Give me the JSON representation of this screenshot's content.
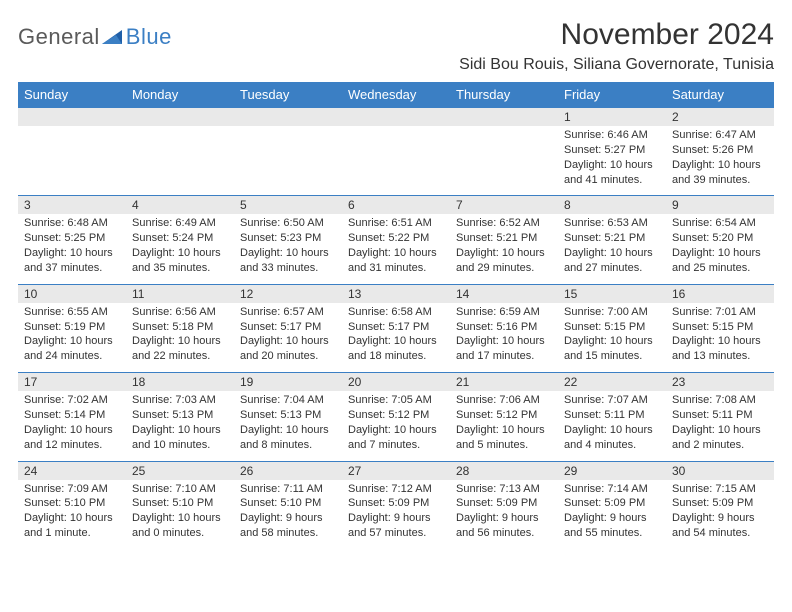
{
  "logo": {
    "text1": "General",
    "text2": "Blue"
  },
  "title": "November 2024",
  "location": "Sidi Bou Rouis, Siliana Governorate, Tunisia",
  "colors": {
    "header_bg": "#3b7fc4",
    "header_text": "#ffffff",
    "daynum_bg": "#e9e9e9",
    "border": "#3b7fc4",
    "text": "#333333",
    "logo_gray": "#5a5a5a",
    "logo_blue": "#3b7fc4"
  },
  "day_headers": [
    "Sunday",
    "Monday",
    "Tuesday",
    "Wednesday",
    "Thursday",
    "Friday",
    "Saturday"
  ],
  "weeks": [
    [
      null,
      null,
      null,
      null,
      null,
      {
        "n": "1",
        "sr": "6:46 AM",
        "ss": "5:27 PM",
        "dl": "10 hours and 41 minutes."
      },
      {
        "n": "2",
        "sr": "6:47 AM",
        "ss": "5:26 PM",
        "dl": "10 hours and 39 minutes."
      }
    ],
    [
      {
        "n": "3",
        "sr": "6:48 AM",
        "ss": "5:25 PM",
        "dl": "10 hours and 37 minutes."
      },
      {
        "n": "4",
        "sr": "6:49 AM",
        "ss": "5:24 PM",
        "dl": "10 hours and 35 minutes."
      },
      {
        "n": "5",
        "sr": "6:50 AM",
        "ss": "5:23 PM",
        "dl": "10 hours and 33 minutes."
      },
      {
        "n": "6",
        "sr": "6:51 AM",
        "ss": "5:22 PM",
        "dl": "10 hours and 31 minutes."
      },
      {
        "n": "7",
        "sr": "6:52 AM",
        "ss": "5:21 PM",
        "dl": "10 hours and 29 minutes."
      },
      {
        "n": "8",
        "sr": "6:53 AM",
        "ss": "5:21 PM",
        "dl": "10 hours and 27 minutes."
      },
      {
        "n": "9",
        "sr": "6:54 AM",
        "ss": "5:20 PM",
        "dl": "10 hours and 25 minutes."
      }
    ],
    [
      {
        "n": "10",
        "sr": "6:55 AM",
        "ss": "5:19 PM",
        "dl": "10 hours and 24 minutes."
      },
      {
        "n": "11",
        "sr": "6:56 AM",
        "ss": "5:18 PM",
        "dl": "10 hours and 22 minutes."
      },
      {
        "n": "12",
        "sr": "6:57 AM",
        "ss": "5:17 PM",
        "dl": "10 hours and 20 minutes."
      },
      {
        "n": "13",
        "sr": "6:58 AM",
        "ss": "5:17 PM",
        "dl": "10 hours and 18 minutes."
      },
      {
        "n": "14",
        "sr": "6:59 AM",
        "ss": "5:16 PM",
        "dl": "10 hours and 17 minutes."
      },
      {
        "n": "15",
        "sr": "7:00 AM",
        "ss": "5:15 PM",
        "dl": "10 hours and 15 minutes."
      },
      {
        "n": "16",
        "sr": "7:01 AM",
        "ss": "5:15 PM",
        "dl": "10 hours and 13 minutes."
      }
    ],
    [
      {
        "n": "17",
        "sr": "7:02 AM",
        "ss": "5:14 PM",
        "dl": "10 hours and 12 minutes."
      },
      {
        "n": "18",
        "sr": "7:03 AM",
        "ss": "5:13 PM",
        "dl": "10 hours and 10 minutes."
      },
      {
        "n": "19",
        "sr": "7:04 AM",
        "ss": "5:13 PM",
        "dl": "10 hours and 8 minutes."
      },
      {
        "n": "20",
        "sr": "7:05 AM",
        "ss": "5:12 PM",
        "dl": "10 hours and 7 minutes."
      },
      {
        "n": "21",
        "sr": "7:06 AM",
        "ss": "5:12 PM",
        "dl": "10 hours and 5 minutes."
      },
      {
        "n": "22",
        "sr": "7:07 AM",
        "ss": "5:11 PM",
        "dl": "10 hours and 4 minutes."
      },
      {
        "n": "23",
        "sr": "7:08 AM",
        "ss": "5:11 PM",
        "dl": "10 hours and 2 minutes."
      }
    ],
    [
      {
        "n": "24",
        "sr": "7:09 AM",
        "ss": "5:10 PM",
        "dl": "10 hours and 1 minute."
      },
      {
        "n": "25",
        "sr": "7:10 AM",
        "ss": "5:10 PM",
        "dl": "10 hours and 0 minutes."
      },
      {
        "n": "26",
        "sr": "7:11 AM",
        "ss": "5:10 PM",
        "dl": "9 hours and 58 minutes."
      },
      {
        "n": "27",
        "sr": "7:12 AM",
        "ss": "5:09 PM",
        "dl": "9 hours and 57 minutes."
      },
      {
        "n": "28",
        "sr": "7:13 AM",
        "ss": "5:09 PM",
        "dl": "9 hours and 56 minutes."
      },
      {
        "n": "29",
        "sr": "7:14 AM",
        "ss": "5:09 PM",
        "dl": "9 hours and 55 minutes."
      },
      {
        "n": "30",
        "sr": "7:15 AM",
        "ss": "5:09 PM",
        "dl": "9 hours and 54 minutes."
      }
    ]
  ],
  "labels": {
    "sunrise": "Sunrise:",
    "sunset": "Sunset:",
    "daylight": "Daylight:"
  }
}
